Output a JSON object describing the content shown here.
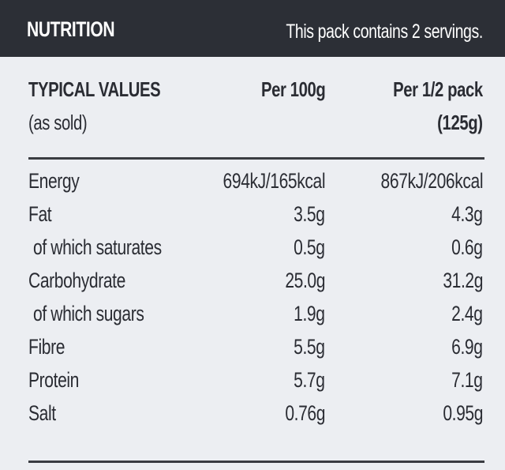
{
  "header": {
    "title": "NUTRITION",
    "note": "This pack contains 2 servings."
  },
  "table": {
    "columns": [
      [
        "TYPICAL VALUES",
        "(as sold)"
      ],
      [
        "Per 100g"
      ],
      [
        "Per 1/2 pack",
        "(125g)"
      ]
    ],
    "rows": [
      [
        "Energy",
        "694kJ/165kcal",
        "867kJ/206kcal"
      ],
      [
        "Fat",
        "3.5g",
        "4.3g"
      ],
      [
        "of which saturates",
        "0.5g",
        "0.6g"
      ],
      [
        "Carbohydrate",
        "25.0g",
        "31.2g"
      ],
      [
        "of which sugars",
        "1.9g",
        "2.4g"
      ],
      [
        "Fibre",
        "5.5g",
        "6.9g"
      ],
      [
        "Protein",
        "5.7g",
        "7.1g"
      ],
      [
        "Salt",
        "0.76g",
        "0.95g"
      ]
    ]
  }
}
